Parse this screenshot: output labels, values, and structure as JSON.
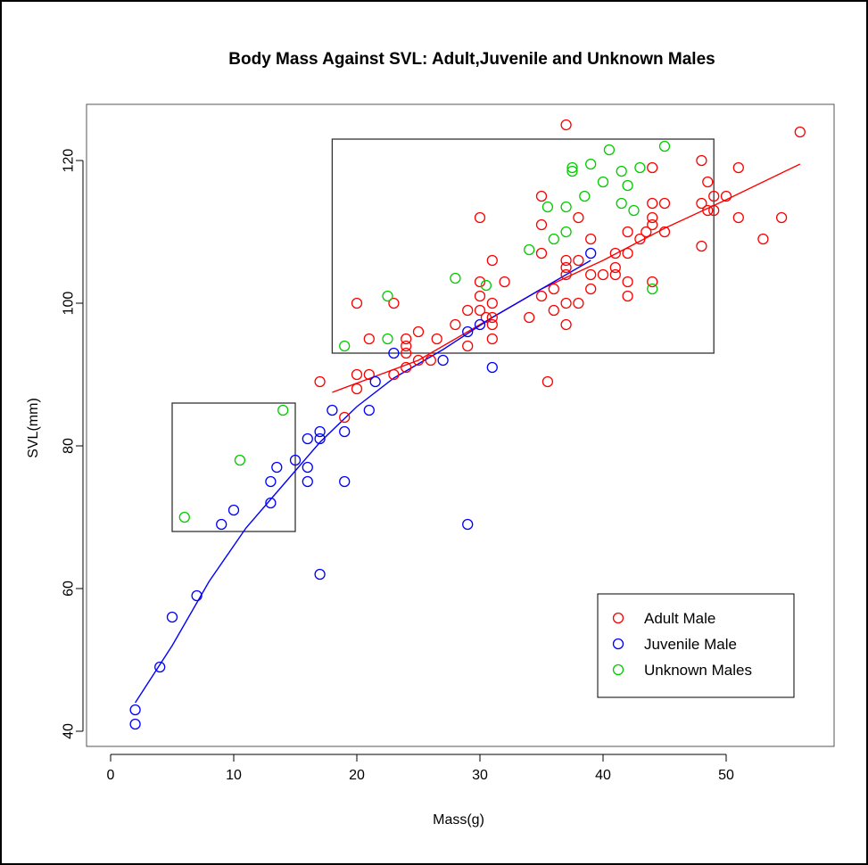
{
  "chart_data": {
    "type": "scatter",
    "title": "Body Mass Against SVL: Adult,Juvenile and Unknown Males",
    "xlabel": "Mass(g)",
    "ylabel": "SVL(mm)",
    "xlim": [
      0,
      57
    ],
    "ylim": [
      38,
      128
    ],
    "x_ticks": [
      0,
      10,
      20,
      30,
      40,
      50
    ],
    "y_ticks": [
      40,
      60,
      80,
      100,
      120
    ],
    "grid": false,
    "legend_position": "bottom-right",
    "series": [
      {
        "name": "Adult Male",
        "color": "#ff0000",
        "points": [
          [
            17,
            89
          ],
          [
            19,
            84
          ],
          [
            20,
            88
          ],
          [
            20,
            90
          ],
          [
            20,
            100
          ],
          [
            21,
            95
          ],
          [
            21,
            90
          ],
          [
            23,
            100
          ],
          [
            23,
            90
          ],
          [
            24,
            95
          ],
          [
            24,
            94
          ],
          [
            24,
            93
          ],
          [
            24,
            91
          ],
          [
            25,
            96
          ],
          [
            25,
            92
          ],
          [
            26,
            92
          ],
          [
            26.5,
            95
          ],
          [
            28,
            97
          ],
          [
            29,
            99
          ],
          [
            29,
            94
          ],
          [
            30,
            112
          ],
          [
            30,
            103
          ],
          [
            30,
            101
          ],
          [
            30,
            99
          ],
          [
            30.5,
            98
          ],
          [
            31,
            106
          ],
          [
            31,
            100
          ],
          [
            31,
            98
          ],
          [
            31,
            97
          ],
          [
            31,
            95
          ],
          [
            32,
            103
          ],
          [
            34,
            98
          ],
          [
            35,
            115
          ],
          [
            35,
            111
          ],
          [
            35,
            107
          ],
          [
            35,
            101
          ],
          [
            35.5,
            89
          ],
          [
            36,
            102
          ],
          [
            36,
            99
          ],
          [
            37,
            125
          ],
          [
            37,
            106
          ],
          [
            37,
            105
          ],
          [
            37,
            104
          ],
          [
            37,
            100
          ],
          [
            37,
            97
          ],
          [
            38,
            112
          ],
          [
            38,
            106
          ],
          [
            38,
            100
          ],
          [
            39,
            109
          ],
          [
            39,
            104
          ],
          [
            39,
            102
          ],
          [
            40,
            104
          ],
          [
            41,
            107
          ],
          [
            41,
            105
          ],
          [
            41,
            104
          ],
          [
            42,
            110
          ],
          [
            42,
            107
          ],
          [
            42,
            103
          ],
          [
            42,
            101
          ],
          [
            43,
            109
          ],
          [
            43.5,
            110
          ],
          [
            44,
            119
          ],
          [
            44,
            114
          ],
          [
            44,
            112
          ],
          [
            44,
            111
          ],
          [
            44,
            103
          ],
          [
            45,
            114
          ],
          [
            45,
            110
          ],
          [
            48,
            120
          ],
          [
            48,
            114
          ],
          [
            48,
            108
          ],
          [
            48.5,
            117
          ],
          [
            48.5,
            113
          ],
          [
            49,
            115
          ],
          [
            49,
            113
          ],
          [
            50,
            115
          ],
          [
            51,
            119
          ],
          [
            51,
            112
          ],
          [
            53,
            109
          ],
          [
            54.5,
            112
          ],
          [
            56,
            124
          ]
        ],
        "trend": [
          [
            18,
            87.5
          ],
          [
            25,
            92
          ],
          [
            30,
            97
          ],
          [
            35,
            102
          ],
          [
            40,
            106
          ],
          [
            45,
            110.5
          ],
          [
            50,
            114.5
          ],
          [
            56,
            119.5
          ]
        ]
      },
      {
        "name": "Juvenile Male",
        "color": "#0000ff",
        "points": [
          [
            2,
            43
          ],
          [
            2,
            41
          ],
          [
            4,
            49
          ],
          [
            5,
            56
          ],
          [
            7,
            59
          ],
          [
            9,
            69
          ],
          [
            10,
            71
          ],
          [
            13,
            75
          ],
          [
            13,
            72
          ],
          [
            13.5,
            77
          ],
          [
            15,
            78
          ],
          [
            16,
            81
          ],
          [
            16,
            77
          ],
          [
            16,
            75
          ],
          [
            17,
            82
          ],
          [
            17,
            81
          ],
          [
            17,
            62
          ],
          [
            18,
            85
          ],
          [
            19,
            82
          ],
          [
            19,
            75
          ],
          [
            21,
            85
          ],
          [
            21.5,
            89
          ],
          [
            23,
            93
          ],
          [
            27,
            92
          ],
          [
            29,
            96
          ],
          [
            29,
            69
          ],
          [
            30,
            97
          ],
          [
            31,
            91
          ],
          [
            39,
            107
          ]
        ],
        "trend": [
          [
            2,
            44
          ],
          [
            5,
            52
          ],
          [
            8,
            61
          ],
          [
            11,
            68.5
          ],
          [
            14,
            74.5
          ],
          [
            17,
            80.5
          ],
          [
            20,
            85.5
          ],
          [
            23,
            89.5
          ],
          [
            27,
            93.5
          ],
          [
            31,
            98
          ],
          [
            35,
            102
          ],
          [
            39,
            106
          ]
        ]
      },
      {
        "name": "Unknown Males",
        "color": "#00cc00",
        "points": [
          [
            6,
            70
          ],
          [
            10.5,
            78
          ],
          [
            14,
            85
          ],
          [
            19,
            94
          ],
          [
            22.5,
            101
          ],
          [
            22.5,
            95
          ],
          [
            28,
            103.5
          ],
          [
            30.5,
            102.5
          ],
          [
            34,
            107.5
          ],
          [
            35.5,
            113.5
          ],
          [
            36,
            109
          ],
          [
            37,
            113.5
          ],
          [
            37,
            110
          ],
          [
            37.5,
            119
          ],
          [
            37.5,
            118.5
          ],
          [
            38.5,
            115
          ],
          [
            39,
            119.5
          ],
          [
            40,
            117
          ],
          [
            40.5,
            121.5
          ],
          [
            41.5,
            118.5
          ],
          [
            41.5,
            114
          ],
          [
            42,
            116.5
          ],
          [
            42.5,
            113
          ],
          [
            43,
            119
          ],
          [
            44,
            102
          ],
          [
            45,
            122
          ]
        ]
      }
    ],
    "annotations": [
      {
        "type": "rectangle",
        "x": [
          5,
          15
        ],
        "y": [
          68,
          86
        ]
      },
      {
        "type": "rectangle",
        "x": [
          18,
          49
        ],
        "y": [
          93,
          123
        ]
      }
    ]
  }
}
